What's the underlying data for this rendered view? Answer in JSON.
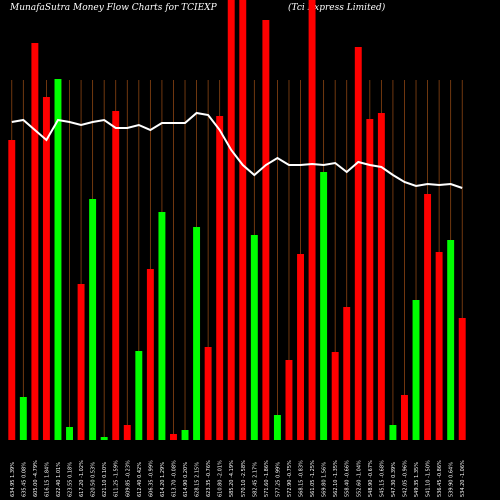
{
  "chart_data": {
    "type": "bar",
    "title": "MunafaSutra  Money Flow  Charts for TCIEXP",
    "subtitle": "(Tci  Express Limited)",
    "categories": [
      "634.95 1.39%",
      "635.45 0.08%",
      "605.00 -4.79%",
      "616.15 1.84%",
      "622.40 1.01%",
      "623.55 0.18%",
      "617.20 -1.02%",
      "620.50 0.53%",
      "621.10 0.10%",
      "611.25 -1.59%",
      "609.85 -0.23%",
      "612.40 0.42%",
      "606.35 -0.99%",
      "614.20 1.29%",
      "613.70 -0.08%",
      "614.90 0.20%",
      "628.15 2.15%",
      "623.35 -0.76%",
      "610.80 -2.01%",
      "585.20 -4.19%",
      "570.10 -2.58%",
      "582.45 2.17%",
      "571.60 -1.86%",
      "577.25 0.99%",
      "572.90 -0.75%",
      "568.15 -0.83%",
      "561.05 -1.25%",
      "569.80 1.56%",
      "562.10 -1.35%",
      "558.40 -0.66%",
      "552.60 -1.04%",
      "548.90 -0.67%",
      "545.15 -0.68%",
      "547.30 0.39%",
      "542.05 -0.96%",
      "549.35 1.35%",
      "541.10 -1.50%",
      "536.45 -0.86%",
      "539.90 0.64%",
      "534.20 -1.06%"
    ],
    "values": [
      300,
      43,
      397,
      343,
      361,
      13,
      156,
      241,
      3,
      329,
      15,
      89,
      171,
      228,
      6,
      10,
      213,
      93,
      324,
      440,
      440,
      205,
      420,
      25,
      80,
      186,
      440,
      268,
      88,
      133,
      393,
      321,
      327,
      15,
      45,
      140,
      246,
      188,
      200,
      122
    ],
    "colors": [
      "#ff0000",
      "#00ff00",
      "#ff0000",
      "#ff0000",
      "#00ff00",
      "#00ff00",
      "#ff0000",
      "#00ff00",
      "#00ff00",
      "#ff0000",
      "#ff0000",
      "#00ff00",
      "#ff0000",
      "#00ff00",
      "#ff0000",
      "#00ff00",
      "#00ff00",
      "#ff0000",
      "#ff0000",
      "#ff0000",
      "#ff0000",
      "#00ff00",
      "#ff0000",
      "#00ff00",
      "#ff0000",
      "#ff0000",
      "#ff0000",
      "#00ff00",
      "#ff0000",
      "#ff0000",
      "#ff0000",
      "#ff0000",
      "#ff0000",
      "#00ff00",
      "#ff0000",
      "#00ff00",
      "#ff0000",
      "#ff0000",
      "#00ff00",
      "#ff0000"
    ],
    "line": {
      "color": "#ffffff",
      "values": [
        318,
        320,
        310,
        300,
        320,
        318,
        315,
        318,
        320,
        312,
        312,
        315,
        310,
        317,
        317,
        317,
        327,
        325,
        310,
        290,
        275,
        265,
        275,
        282,
        275,
        275,
        276,
        275,
        277,
        268,
        278,
        275,
        273,
        265,
        258,
        254,
        256,
        255,
        256,
        252
      ]
    },
    "ylim": [
      0,
      440
    ],
    "grid": true,
    "grid_color": "#8b4513"
  }
}
